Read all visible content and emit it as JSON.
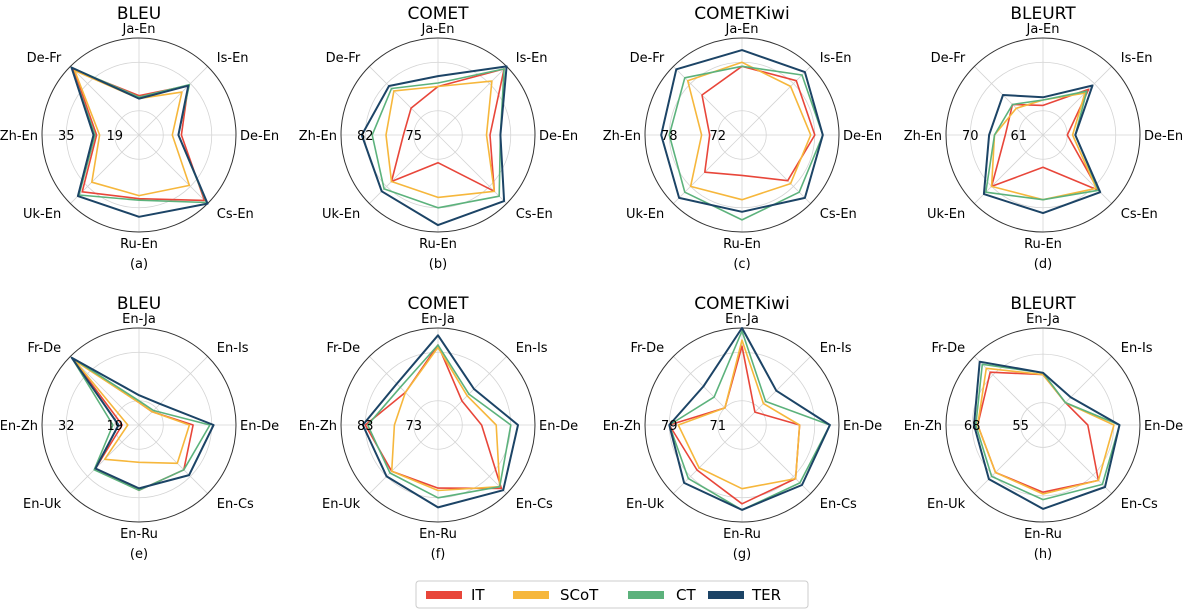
{
  "colors": {
    "IT": "#e8463a",
    "SCoT": "#f6b73c",
    "CT": "#5cb27c",
    "TER": "#1c4466",
    "grid": "#d4d4d4",
    "frame": "#333333"
  },
  "legend": {
    "items": [
      {
        "name": "IT",
        "color": "#e8463a"
      },
      {
        "name": "SCoT",
        "color": "#f6b73c"
      },
      {
        "name": "CT",
        "color": "#5cb27c"
      },
      {
        "name": "TER",
        "color": "#1c4466"
      }
    ],
    "placement": "bottom-center"
  },
  "chart_data": [
    {
      "type": "radar",
      "panel": "(a)",
      "title": "BLEU",
      "axes": [
        "Ja-En",
        "Is-En",
        "De-En",
        "Cs-En",
        "Ru-En",
        "Uk-En",
        "Zh-En",
        "De-Fr"
      ],
      "tick_labels": [
        "19",
        "35"
      ],
      "range": [
        11,
        43
      ],
      "series": [
        {
          "name": "IT",
          "values": [
            24.0,
            34.0,
            25.0,
            41.5,
            32.0,
            37.5,
            25.0,
            41.5
          ]
        },
        {
          "name": "SCoT",
          "values": [
            23.0,
            31.0,
            22.0,
            34.5,
            31.0,
            33.0,
            24.0,
            41.0
          ]
        },
        {
          "name": "CT",
          "values": [
            23.5,
            34.5,
            24.0,
            42.5,
            32.5,
            39.0,
            25.5,
            42.5
          ]
        },
        {
          "name": "TER",
          "values": [
            23.0,
            34.0,
            24.0,
            43.0,
            38.0,
            39.5,
            26.0,
            42.5
          ]
        }
      ]
    },
    {
      "type": "radar",
      "panel": "(b)",
      "title": "COMET",
      "axes": [
        "Ja-En",
        "Is-En",
        "De-En",
        "Cs-En",
        "Ru-En",
        "Uk-En",
        "Zh-En",
        "De-Fr"
      ],
      "tick_labels": [
        "75",
        "82"
      ],
      "range": [
        71.5,
        85.5
      ],
      "series": [
        {
          "name": "IT",
          "values": [
            78.5,
            85.0,
            79.0,
            83.0,
            75.5,
            81.0,
            76.5,
            77.0
          ]
        },
        {
          "name": "SCoT",
          "values": [
            78.5,
            82.5,
            78.5,
            83.0,
            80.5,
            81.0,
            79.0,
            80.5
          ]
        },
        {
          "name": "CT",
          "values": [
            79.0,
            85.0,
            80.5,
            84.0,
            82.0,
            82.5,
            81.0,
            81.0
          ]
        },
        {
          "name": "TER",
          "values": [
            80.0,
            85.5,
            80.5,
            85.0,
            84.5,
            83.0,
            82.5,
            81.5
          ]
        }
      ]
    },
    {
      "type": "radar",
      "panel": "(c)",
      "title": "COMETKiwi",
      "axes": [
        "Ja-En",
        "Is-En",
        "De-En",
        "Cs-En",
        "Ru-En",
        "Uk-En",
        "Zh-En",
        "De-Fr"
      ],
      "tick_labels": [
        "72",
        "78"
      ],
      "range": [
        69,
        81
      ],
      "series": [
        {
          "name": "IT",
          "values": [
            77.5,
            78.5,
            78.0,
            77.0,
            74.0,
            75.5,
            73.0,
            76.0
          ]
        },
        {
          "name": "SCoT",
          "values": [
            78.0,
            77.5,
            77.5,
            77.5,
            77.0,
            78.0,
            74.0,
            78.5
          ]
        },
        {
          "name": "CT",
          "values": [
            77.5,
            79.5,
            79.0,
            79.0,
            79.5,
            79.0,
            78.0,
            79.0
          ]
        },
        {
          "name": "TER",
          "values": [
            79.5,
            80.0,
            79.0,
            80.0,
            78.5,
            80.0,
            79.0,
            80.5
          ]
        }
      ]
    },
    {
      "type": "radar",
      "panel": "(d)",
      "title": "BLEURT",
      "axes": [
        "Ja-En",
        "Is-En",
        "De-En",
        "Cs-En",
        "Ru-En",
        "Uk-En",
        "Zh-En",
        "De-Fr"
      ],
      "tick_labels": [
        "61",
        "70"
      ],
      "range": [
        56.5,
        74.5
      ],
      "series": [
        {
          "name": "IT",
          "values": [
            62.0,
            68.5,
            61.0,
            71.0,
            62.5,
            70.0,
            63.5,
            64.5
          ]
        },
        {
          "name": "SCoT",
          "values": [
            63.0,
            67.5,
            62.0,
            70.5,
            68.5,
            70.0,
            65.5,
            63.5
          ]
        },
        {
          "name": "CT",
          "values": [
            63.0,
            68.0,
            62.5,
            71.0,
            68.5,
            71.5,
            65.5,
            64.5
          ]
        },
        {
          "name": "TER",
          "values": [
            63.5,
            69.5,
            62.5,
            71.5,
            71.0,
            72.0,
            66.5,
            67.0
          ]
        }
      ]
    },
    {
      "type": "radar",
      "panel": "(e)",
      "title": "BLEU",
      "axes": [
        "En-Ja",
        "En-Is",
        "En-De",
        "En-Cs",
        "En-Ru",
        "En-Uk",
        "En-Zh",
        "Fr-De"
      ],
      "tick_labels": [
        "19",
        "32"
      ],
      "range": [
        12.5,
        38.5
      ],
      "series": [
        {
          "name": "IT",
          "values": [
            18.5,
            17.5,
            27.0,
            29.5,
            30.0,
            29.0,
            17.0,
            37.5
          ]
        },
        {
          "name": "SCoT",
          "values": [
            18.5,
            17.5,
            26.0,
            27.0,
            22.5,
            25.5,
            15.5,
            37.0
          ]
        },
        {
          "name": "CT",
          "values": [
            19.0,
            18.0,
            31.5,
            29.5,
            30.0,
            29.5,
            19.5,
            38.0
          ]
        },
        {
          "name": "TER",
          "values": [
            20.5,
            20.5,
            32.5,
            31.5,
            29.5,
            29.0,
            18.0,
            38.0
          ]
        }
      ]
    },
    {
      "type": "radar",
      "panel": "(f)",
      "title": "COMET",
      "axes": [
        "En-Ja",
        "En-Is",
        "En-De",
        "En-Cs",
        "En-Ru",
        "En-Uk",
        "En-Zh",
        "Fr-De"
      ],
      "tick_labels": [
        "73",
        "83"
      ],
      "range": [
        68,
        88
      ],
      "series": [
        {
          "name": "IT",
          "values": [
            84.5,
            75.0,
            77.0,
            86.5,
            81.0,
            81.5,
            83.0,
            77.5
          ]
        },
        {
          "name": "SCoT",
          "values": [
            84.0,
            76.5,
            80.0,
            86.0,
            81.5,
            81.5,
            77.0,
            77.5
          ]
        },
        {
          "name": "CT",
          "values": [
            84.5,
            77.0,
            83.0,
            86.0,
            83.0,
            82.0,
            82.5,
            79.0
          ]
        },
        {
          "name": "TER",
          "values": [
            86.5,
            78.5,
            84.5,
            87.0,
            85.0,
            83.0,
            83.5,
            80.0
          ]
        }
      ]
    },
    {
      "type": "radar",
      "panel": "(g)",
      "title": "COMETKiwi",
      "axes": [
        "En-Ja",
        "En-Is",
        "En-De",
        "En-Cs",
        "En-Ru",
        "En-Uk",
        "En-Zh",
        "Fr-De"
      ],
      "tick_labels": [
        "71",
        "79"
      ],
      "range": [
        67,
        83
      ],
      "series": [
        {
          "name": "IT",
          "values": [
            80.0,
            70.0,
            76.5,
            79.5,
            80.0,
            77.5,
            79.0,
            71.0
          ]
        },
        {
          "name": "SCoT",
          "values": [
            81.0,
            72.0,
            76.5,
            79.5,
            77.5,
            77.0,
            77.5,
            71.0
          ]
        },
        {
          "name": "CT",
          "values": [
            82.5,
            72.5,
            81.5,
            80.5,
            81.0,
            79.5,
            79.0,
            73.5
          ]
        },
        {
          "name": "TER",
          "values": [
            83.0,
            75.0,
            81.5,
            81.0,
            81.0,
            80.5,
            79.0,
            76.0
          ]
        }
      ]
    },
    {
      "type": "radar",
      "panel": "(h)",
      "title": "BLEURT",
      "axes": [
        "En-Ja",
        "En-Is",
        "En-De",
        "En-Cs",
        "En-Ru",
        "En-Uk",
        "En-Zh",
        "Fr-De"
      ],
      "tick_labels": [
        "55",
        "68"
      ],
      "range": [
        49,
        75
      ],
      "series": [
        {
          "name": "IT",
          "values": [
            62.5,
            57.5,
            61.0,
            70.0,
            67.0,
            67.0,
            66.5,
            69.0
          ]
        },
        {
          "name": "SCoT",
          "values": [
            62.5,
            57.5,
            68.0,
            70.0,
            67.5,
            67.0,
            66.5,
            70.5
          ]
        },
        {
          "name": "CT",
          "values": [
            63.0,
            57.5,
            69.5,
            71.5,
            69.0,
            68.5,
            67.0,
            72.0
          ]
        },
        {
          "name": "TER",
          "values": [
            63.0,
            59.5,
            69.5,
            72.5,
            71.5,
            69.5,
            67.5,
            73.0
          ]
        }
      ]
    }
  ]
}
